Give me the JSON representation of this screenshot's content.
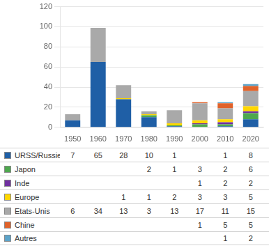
{
  "chart_data": {
    "type": "bar",
    "stacked": true,
    "categories": [
      "1950",
      "1960",
      "1970",
      "1980",
      "1990",
      "2000",
      "2010",
      "2020"
    ],
    "series": [
      {
        "name": "URSS/Russie",
        "color": "#1F5FA6",
        "values": [
          7,
          65,
          28,
          10,
          1,
          0,
          1,
          8
        ],
        "table_values": [
          7,
          65,
          28,
          10,
          1,
          null,
          1,
          8
        ]
      },
      {
        "name": "Japon",
        "color": "#4EA84E",
        "values": [
          0,
          0,
          0,
          2,
          1,
          3,
          2,
          6
        ],
        "table_values": [
          null,
          null,
          null,
          2,
          1,
          3,
          2,
          6
        ]
      },
      {
        "name": "Inde",
        "color": "#7030A0",
        "values": [
          0,
          0,
          0,
          0,
          0,
          1,
          2,
          2
        ],
        "table_values": [
          null,
          null,
          null,
          null,
          null,
          1,
          2,
          2
        ]
      },
      {
        "name": "Europe",
        "color": "#FFD700",
        "values": [
          0,
          0,
          1,
          1,
          2,
          3,
          3,
          5
        ],
        "table_values": [
          null,
          null,
          1,
          1,
          2,
          3,
          3,
          5
        ]
      },
      {
        "name": "Etats-Unis",
        "color": "#A9A9A9",
        "values": [
          6,
          34,
          13,
          3,
          13,
          17,
          11,
          15
        ],
        "table_values": [
          6,
          34,
          13,
          3,
          13,
          17,
          11,
          15
        ]
      },
      {
        "name": "Chine",
        "color": "#E0622A",
        "values": [
          0,
          0,
          0,
          0,
          0,
          1,
          5,
          5
        ],
        "table_values": [
          null,
          null,
          null,
          null,
          null,
          1,
          5,
          5
        ]
      },
      {
        "name": "Autres",
        "color": "#5BA3C9",
        "values": [
          0,
          0,
          0,
          0,
          0,
          0,
          1,
          2
        ],
        "table_values": [
          null,
          null,
          null,
          null,
          null,
          null,
          1,
          2
        ]
      }
    ],
    "ylim": [
      0,
      120
    ],
    "yticks": [
      0,
      20,
      40,
      60,
      80,
      100,
      120
    ],
    "grid": true
  }
}
